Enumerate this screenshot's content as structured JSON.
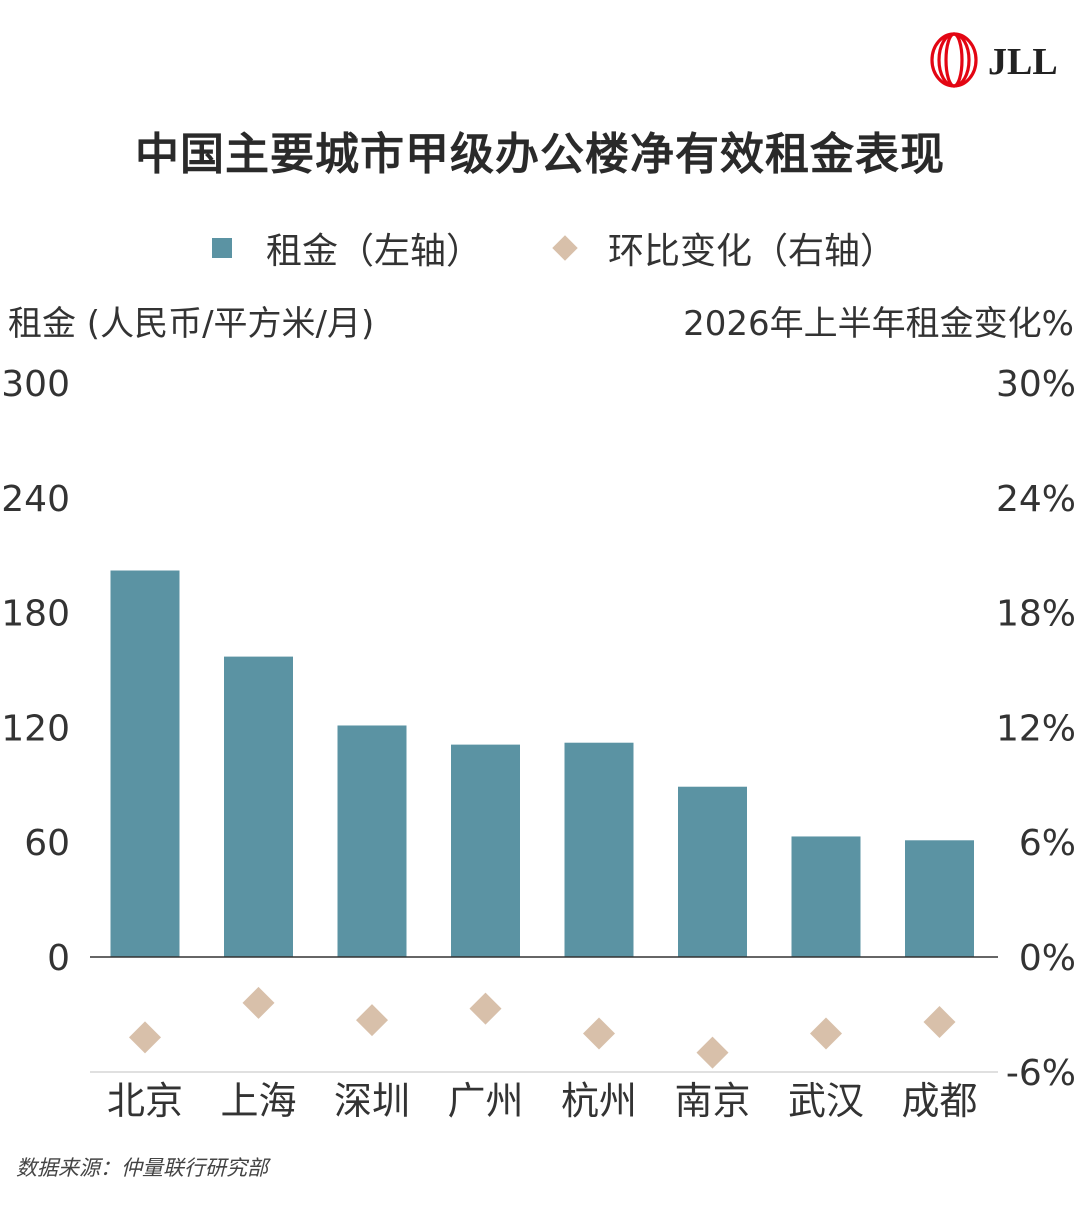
{
  "logo": {
    "text": "JLL",
    "icon": "jll-ribbon-logo",
    "color": "#e30613"
  },
  "chart_data": {
    "type": "bar",
    "title": "中国主要城市甲级办公楼净有效租金表现",
    "categories": [
      "北京",
      "上海",
      "深圳",
      "广州",
      "杭州",
      "南京",
      "武汉",
      "成都"
    ],
    "series": [
      {
        "name": "租金（左轴）",
        "type": "bar",
        "axis": "left",
        "color": "#5b93a3",
        "values": [
          202,
          157,
          121,
          111,
          112,
          89,
          63,
          61
        ]
      },
      {
        "name": "环比变化（右轴）",
        "type": "scatter",
        "marker": "diamond",
        "axis": "right",
        "color": "#d8c0aa",
        "values": [
          -4.2,
          -2.4,
          -3.3,
          -2.7,
          -4.0,
          -5.0,
          -4.0,
          -3.4
        ]
      }
    ],
    "ylabel_left": "租金 (人民币/平方米/月)",
    "ylabel_right": "2026年上半年租金变化%",
    "ylim_left": [
      0,
      300
    ],
    "yticks_left": [
      "300",
      "240",
      "180",
      "120",
      "60",
      "0"
    ],
    "ylim_right": [
      -6,
      30
    ],
    "yticks_right": [
      "30%",
      "24%",
      "18%",
      "12%",
      "6%",
      "0%",
      "-6%"
    ],
    "legend_position": "top-center",
    "grid": false
  },
  "source": "数据来源：仲量联行研究部"
}
